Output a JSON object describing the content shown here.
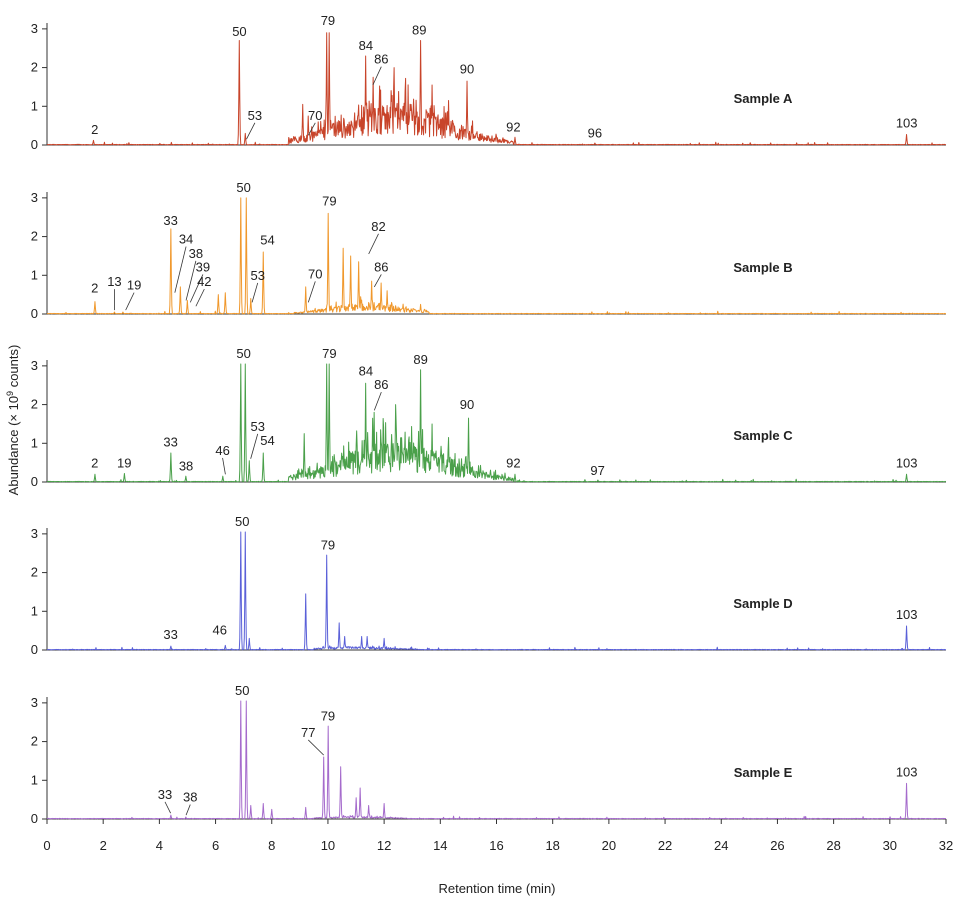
{
  "chart_data": {
    "type": "line",
    "xlabel": "Retention time (min)",
    "ylabel": "Abundance (× 10",
    "ylabel_sup": "9",
    "ylabel_end": " counts)",
    "xlim": [
      0,
      32
    ],
    "ylim": [
      0,
      3.1
    ],
    "xticks": [
      0,
      2,
      4,
      6,
      8,
      10,
      12,
      14,
      16,
      18,
      20,
      22,
      24,
      26,
      28,
      30,
      32
    ],
    "yticks": [
      0,
      1,
      2,
      3
    ],
    "grid": false,
    "legend": "none",
    "series": [
      {
        "name": "Sample A",
        "color": "#c8442a",
        "hump": {
          "center": 12.4,
          "width": 1.9,
          "height": 0.95,
          "start": 8.6,
          "end": 16.6
        },
        "peaks": [
          [
            1.65,
            0.12
          ],
          [
            6.85,
            2.7
          ],
          [
            7.05,
            0.3
          ],
          [
            9.1,
            1.05
          ],
          [
            9.3,
            0.75
          ],
          [
            9.5,
            0.3
          ],
          [
            9.95,
            2.9
          ],
          [
            10.05,
            2.9
          ],
          [
            11.35,
            2.3
          ],
          [
            11.6,
            1.75
          ],
          [
            12.35,
            2.0
          ],
          [
            13.3,
            2.7
          ],
          [
            13.7,
            1.55
          ],
          [
            14.95,
            1.65
          ],
          [
            14.3,
            1.15
          ],
          [
            16.65,
            0.2
          ],
          [
            19.5,
            0.05
          ],
          [
            30.6,
            0.27
          ]
        ],
        "labels": [
          {
            "text": "2",
            "x": 1.7,
            "y": 0.28
          },
          {
            "text": "50",
            "x": 6.85,
            "y": 2.82
          },
          {
            "text": "53",
            "x": 7.4,
            "y": 0.65,
            "tx": 7.1,
            "ty": 0.15
          },
          {
            "text": "70",
            "x": 9.55,
            "y": 0.65,
            "tx": 9.3,
            "ty": 0.25
          },
          {
            "text": "79",
            "x": 10.0,
            "y": 3.1
          },
          {
            "text": "84",
            "x": 11.35,
            "y": 2.45
          },
          {
            "text": "86",
            "x": 11.9,
            "y": 2.1,
            "tx": 11.6,
            "ty": 1.55
          },
          {
            "text": "89",
            "x": 13.25,
            "y": 2.85
          },
          {
            "text": "90",
            "x": 14.95,
            "y": 1.85
          },
          {
            "text": "92",
            "x": 16.6,
            "y": 0.35
          },
          {
            "text": "96",
            "x": 19.5,
            "y": 0.2
          },
          {
            "text": "103",
            "x": 30.6,
            "y": 0.45
          }
        ],
        "sample_label": "Sample A"
      },
      {
        "name": "Sample B",
        "color": "#f0982c",
        "hump": {
          "center": 11.4,
          "width": 1.2,
          "height": 0.25,
          "start": 8.8,
          "end": 13.6
        },
        "peaks": [
          [
            1.7,
            0.32
          ],
          [
            2.4,
            0.05
          ],
          [
            2.7,
            0.05
          ],
          [
            4.4,
            2.2
          ],
          [
            4.75,
            0.7
          ],
          [
            5.0,
            0.35
          ],
          [
            6.1,
            0.5
          ],
          [
            6.35,
            0.55
          ],
          [
            6.9,
            3.0
          ],
          [
            7.1,
            3.0
          ],
          [
            7.25,
            0.4
          ],
          [
            7.7,
            1.6
          ],
          [
            9.2,
            0.7
          ],
          [
            10.0,
            2.6
          ],
          [
            10.55,
            1.7
          ],
          [
            10.8,
            1.5
          ],
          [
            11.1,
            1.35
          ],
          [
            11.55,
            0.85
          ],
          [
            11.9,
            0.8
          ],
          [
            12.1,
            0.6
          ],
          [
            13.3,
            0.25
          ]
        ],
        "labels": [
          {
            "text": "2",
            "x": 1.7,
            "y": 0.55
          },
          {
            "text": "13",
            "x": 2.4,
            "y": 0.72,
            "tx": 2.4,
            "ty": 0.1
          },
          {
            "text": "19",
            "x": 3.1,
            "y": 0.63,
            "tx": 2.8,
            "ty": 0.1
          },
          {
            "text": "33",
            "x": 4.4,
            "y": 2.3
          },
          {
            "text": "34",
            "x": 4.95,
            "y": 1.82,
            "tx": 4.55,
            "ty": 0.55
          },
          {
            "text": "38",
            "x": 5.3,
            "y": 1.45,
            "tx": 4.95,
            "ty": 0.35
          },
          {
            "text": "39",
            "x": 5.55,
            "y": 1.1,
            "tx": 5.1,
            "ty": 0.3
          },
          {
            "text": "42",
            "x": 5.6,
            "y": 0.72,
            "tx": 5.3,
            "ty": 0.2
          },
          {
            "text": "50",
            "x": 7.0,
            "y": 3.15
          },
          {
            "text": "53",
            "x": 7.5,
            "y": 0.88,
            "tx": 7.3,
            "ty": 0.3
          },
          {
            "text": "54",
            "x": 7.85,
            "y": 1.8
          },
          {
            "text": "70",
            "x": 9.55,
            "y": 0.92,
            "tx": 9.3,
            "ty": 0.3
          },
          {
            "text": "79",
            "x": 10.05,
            "y": 2.8
          },
          {
            "text": "82",
            "x": 11.8,
            "y": 2.15,
            "tx": 11.45,
            "ty": 1.55
          },
          {
            "text": "86",
            "x": 11.9,
            "y": 1.1,
            "tx": 11.65,
            "ty": 0.7
          }
        ],
        "sample_label": "Sample B"
      },
      {
        "name": "Sample C",
        "color": "#4aa04a",
        "hump": {
          "center": 12.4,
          "width": 1.9,
          "height": 0.95,
          "start": 8.6,
          "end": 16.6
        },
        "peaks": [
          [
            1.7,
            0.2
          ],
          [
            2.75,
            0.22
          ],
          [
            4.4,
            0.75
          ],
          [
            4.95,
            0.15
          ],
          [
            6.25,
            0.15
          ],
          [
            6.9,
            3.05
          ],
          [
            7.05,
            3.05
          ],
          [
            7.2,
            0.55
          ],
          [
            7.7,
            0.75
          ],
          [
            9.15,
            1.25
          ],
          [
            9.95,
            3.05
          ],
          [
            10.05,
            3.05
          ],
          [
            11.35,
            2.55
          ],
          [
            11.65,
            1.8
          ],
          [
            12.4,
            2.0
          ],
          [
            13.3,
            2.9
          ],
          [
            13.7,
            1.5
          ],
          [
            14.3,
            1.15
          ],
          [
            15.0,
            1.65
          ],
          [
            16.65,
            0.2
          ],
          [
            19.6,
            0.05
          ],
          [
            30.6,
            0.2
          ]
        ],
        "labels": [
          {
            "text": "2",
            "x": 1.7,
            "y": 0.38
          },
          {
            "text": "19",
            "x": 2.75,
            "y": 0.38
          },
          {
            "text": "33",
            "x": 4.4,
            "y": 0.92
          },
          {
            "text": "38",
            "x": 4.95,
            "y": 0.3
          },
          {
            "text": "46",
            "x": 6.25,
            "y": 0.7,
            "tx": 6.35,
            "ty": 0.2
          },
          {
            "text": "50",
            "x": 7.0,
            "y": 3.2
          },
          {
            "text": "53",
            "x": 7.5,
            "y": 1.32,
            "tx": 7.25,
            "ty": 0.6
          },
          {
            "text": "54",
            "x": 7.85,
            "y": 0.95
          },
          {
            "text": "79",
            "x": 10.05,
            "y": 3.2
          },
          {
            "text": "84",
            "x": 11.35,
            "y": 2.75
          },
          {
            "text": "86",
            "x": 11.9,
            "y": 2.4,
            "tx": 11.65,
            "ty": 1.85
          },
          {
            "text": "89",
            "x": 13.3,
            "y": 3.05
          },
          {
            "text": "90",
            "x": 14.95,
            "y": 1.88
          },
          {
            "text": "92",
            "x": 16.6,
            "y": 0.38
          },
          {
            "text": "97",
            "x": 19.6,
            "y": 0.18
          },
          {
            "text": "103",
            "x": 30.6,
            "y": 0.38
          }
        ],
        "sample_label": "Sample C"
      },
      {
        "name": "Sample D",
        "color": "#5a60d8",
        "hump": {
          "center": 11.0,
          "width": 1.1,
          "height": 0.07,
          "start": 9.5,
          "end": 13.2
        },
        "peaks": [
          [
            4.4,
            0.1
          ],
          [
            6.35,
            0.12
          ],
          [
            6.9,
            3.05
          ],
          [
            7.05,
            3.05
          ],
          [
            7.2,
            0.3
          ],
          [
            9.2,
            1.45
          ],
          [
            9.95,
            2.45
          ],
          [
            10.4,
            0.7
          ],
          [
            10.6,
            0.35
          ],
          [
            11.2,
            0.35
          ],
          [
            11.4,
            0.35
          ],
          [
            12.0,
            0.3
          ],
          [
            30.6,
            0.62
          ]
        ],
        "labels": [
          {
            "text": "33",
            "x": 4.4,
            "y": 0.28
          },
          {
            "text": "46",
            "x": 6.15,
            "y": 0.4
          },
          {
            "text": "50",
            "x": 6.95,
            "y": 3.2
          },
          {
            "text": "79",
            "x": 10.0,
            "y": 2.6
          },
          {
            "text": "103",
            "x": 30.6,
            "y": 0.8
          }
        ],
        "sample_label": "Sample D"
      },
      {
        "name": "Sample E",
        "color": "#a56bcc",
        "hump": {
          "center": 11.0,
          "width": 1.0,
          "height": 0.05,
          "start": 9.5,
          "end": 12.8
        },
        "peaks": [
          [
            4.4,
            0.1
          ],
          [
            4.95,
            0.05
          ],
          [
            6.9,
            3.05
          ],
          [
            7.1,
            3.05
          ],
          [
            7.25,
            0.35
          ],
          [
            7.7,
            0.4
          ],
          [
            8.0,
            0.25
          ],
          [
            9.2,
            0.3
          ],
          [
            9.85,
            1.6
          ],
          [
            10.0,
            2.4
          ],
          [
            10.45,
            1.35
          ],
          [
            11.0,
            0.55
          ],
          [
            11.15,
            0.8
          ],
          [
            11.45,
            0.35
          ],
          [
            12.0,
            0.4
          ],
          [
            30.6,
            0.92
          ]
        ],
        "labels": [
          {
            "text": "33",
            "x": 4.2,
            "y": 0.52,
            "tx": 4.4,
            "ty": 0.15
          },
          {
            "text": "38",
            "x": 5.1,
            "y": 0.45,
            "tx": 4.95,
            "ty": 0.1
          },
          {
            "text": "50",
            "x": 6.95,
            "y": 3.2
          },
          {
            "text": "77",
            "x": 9.3,
            "y": 2.12,
            "tx": 9.85,
            "ty": 1.65
          },
          {
            "text": "79",
            "x": 10.0,
            "y": 2.55
          },
          {
            "text": "103",
            "x": 30.6,
            "y": 1.1
          }
        ],
        "sample_label": "Sample E"
      }
    ]
  }
}
